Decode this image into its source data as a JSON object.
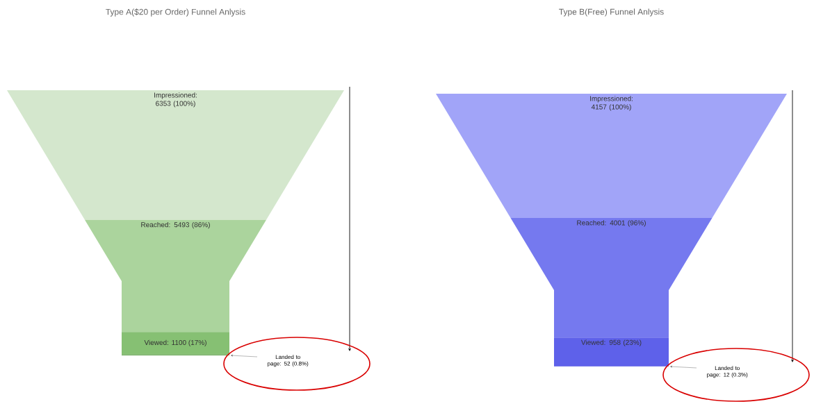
{
  "chart_data": [
    {
      "type": "other",
      "title": "Type A($20 per Order) Funnel Anlysis",
      "values": [
        6353,
        5493,
        1100,
        52
      ],
      "value_labels": [
        "Impressioned: 6353 (100%)",
        "Reached: 5493 (86%)",
        "Viewed: 1100 (17%)",
        "Landed to page: 52 (0.8%)"
      ],
      "colors": [
        "#d4e7cd",
        "#abd49d",
        "#86c073",
        "#6aa857"
      ]
    },
    {
      "type": "other",
      "title": "Type B(Free) Funnel Anlysis",
      "values": [
        4157,
        4001,
        958,
        12
      ],
      "value_labels": [
        "Impressioned: 4157 (100%)",
        "Reached: 4001 (96%)",
        "Viewed: 958 (23%)",
        "Landed to page: 12 (0.3%)"
      ],
      "colors": [
        "#a1a4f8",
        "#7579ef",
        "#5e61ea",
        "#4a4de0"
      ]
    }
  ]
}
